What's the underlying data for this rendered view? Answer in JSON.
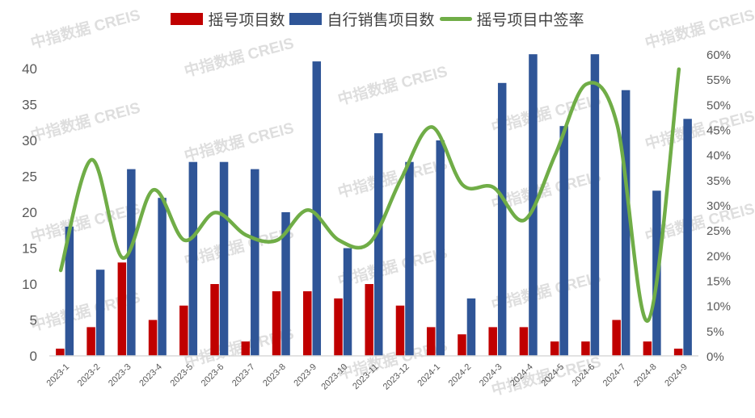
{
  "chart_data": {
    "type": "bar+line",
    "title": "",
    "categories": [
      "2023-1",
      "2023-2",
      "2023-3",
      "2023-4",
      "2023-5",
      "2023-6",
      "2023-7",
      "2023-8",
      "2023-9",
      "2023-10",
      "2023-11",
      "2023-12",
      "2024-1",
      "2024-2",
      "2024-3",
      "2024-4",
      "2024-5",
      "2024-6",
      "2024-7",
      "2024-8",
      "2024-9"
    ],
    "series": [
      {
        "name": "摇号项目数",
        "type": "bar",
        "axis": "left",
        "color": "#C00000",
        "values": [
          1,
          4,
          13,
          5,
          7,
          10,
          2,
          9,
          9,
          8,
          10,
          7,
          4,
          3,
          4,
          4,
          2,
          2,
          5,
          2,
          1
        ]
      },
      {
        "name": "自行销售项目数",
        "type": "bar",
        "axis": "left",
        "color": "#2F5597",
        "values": [
          18,
          12,
          26,
          22,
          27,
          27,
          26,
          20,
          41,
          15,
          31,
          27,
          30,
          8,
          38,
          42,
          32,
          42,
          37,
          23,
          33
        ]
      },
      {
        "name": "摇号项目中签率",
        "type": "line",
        "axis": "right",
        "color": "#70AD47",
        "unit": "%",
        "values": [
          17,
          39,
          19.5,
          33,
          23,
          28.5,
          24,
          23,
          29,
          23,
          22.5,
          35,
          45.5,
          34,
          33.5,
          27,
          40,
          54,
          46,
          7,
          57
        ]
      }
    ],
    "left_axis": {
      "min": 0,
      "max": 40,
      "ticks": [
        0,
        5,
        10,
        15,
        20,
        25,
        30,
        35,
        40
      ]
    },
    "right_axis": {
      "min": 0,
      "max": 60,
      "ticks": [
        "0%",
        "5%",
        "10%",
        "15%",
        "20%",
        "25%",
        "30%",
        "35%",
        "40%",
        "45%",
        "50%",
        "55%",
        "60%"
      ]
    },
    "xlabel": "",
    "ylabel": "",
    "legend_position": "top",
    "grid": false
  },
  "legend": [
    {
      "label": "摇号项目数",
      "kind": "bar",
      "color": "#C00000"
    },
    {
      "label": "自行销售项目数",
      "kind": "bar",
      "color": "#2F5597"
    },
    {
      "label": "摇号项目中签率",
      "kind": "line",
      "color": "#70AD47"
    }
  ],
  "watermark": {
    "text": "中指数据 CREIS"
  }
}
